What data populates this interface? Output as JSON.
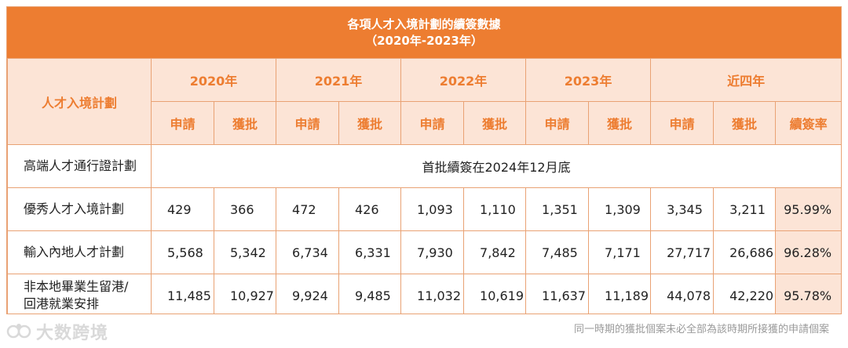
{
  "title": {
    "line1": "各項人才入境計劃的續簽數據",
    "line2": "（2020年-2023年）"
  },
  "header": {
    "scheme_label": "人才入境計劃",
    "years": [
      "2020年",
      "2021年",
      "2022年",
      "2023年",
      "近四年"
    ],
    "apply": "申請",
    "approve": "獲批",
    "rate": "續簽率"
  },
  "rows": [
    {
      "name": "高端人才通行證計劃",
      "note": "首批續簽在2024年12月底"
    },
    {
      "name": "優秀人才入境計劃",
      "values": [
        "429",
        "366",
        "472",
        "426",
        "1,093",
        "1,110",
        "1,351",
        "1,309",
        "3,345",
        "3,211"
      ],
      "rate": "95.99%"
    },
    {
      "name": "輸入內地人才計劃",
      "values": [
        "5,568",
        "5,342",
        "6,734",
        "6,331",
        "7,930",
        "7,842",
        "7,485",
        "7,171",
        "27,717",
        "26,686"
      ],
      "rate": "96.28%"
    },
    {
      "name_line1": "非本地畢業生留港/",
      "name_line2": "回港就業安排",
      "values": [
        "11,485",
        "10,927",
        "9,924",
        "9,485",
        "11,032",
        "10,619",
        "11,637",
        "11,189",
        "44,078",
        "42,220"
      ],
      "rate": "95.78%"
    }
  ],
  "watermark": "大数跨境",
  "footnote": "同一時期的獲批個案未必全部為該時期所接獲的申請個案",
  "colors": {
    "accent": "#ed7d31",
    "header_bg": "#fce4d6",
    "border": "#e9a274"
  }
}
